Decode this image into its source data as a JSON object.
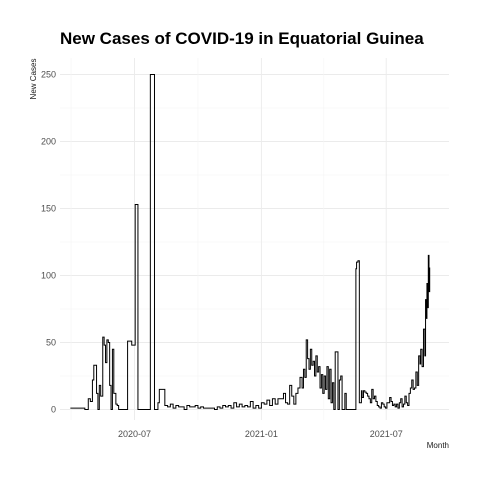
{
  "chart_data": {
    "type": "line",
    "title": "New Cases of COVID-19 in Equatorial Guinea",
    "xlabel": "Month",
    "ylabel": "New Cases",
    "x_ticks": [
      "2020-07",
      "2021-01",
      "2021-07"
    ],
    "y_ticks": [
      0,
      50,
      100,
      150,
      200,
      250
    ],
    "xlim": [
      "2020-03-15",
      "2021-09-30"
    ],
    "ylim": [
      0,
      258
    ],
    "grid": true,
    "line_color": "#000000",
    "series": [
      {
        "x": [
          "2020-03-30",
          "2020-04-10",
          "2020-04-20",
          "2020-04-25",
          "2020-04-28",
          "2020-05-01",
          "2020-05-03",
          "2020-05-05",
          "2020-05-07",
          "2020-05-09",
          "2020-05-11",
          "2020-05-13",
          "2020-05-16",
          "2020-05-18",
          "2020-05-20",
          "2020-05-22",
          "2020-05-24",
          "2020-05-26",
          "2020-05-28",
          "2020-05-30",
          "2020-06-01",
          "2020-06-04",
          "2020-06-06",
          "2020-06-08",
          "2020-06-12",
          "2020-06-16",
          "2020-06-20",
          "2020-06-21",
          "2020-06-26",
          "2020-06-27",
          "2020-07-01",
          "2020-07-02",
          "2020-07-05",
          "2020-07-06",
          "2020-07-10",
          "2020-07-11",
          "2020-07-23",
          "2020-07-24",
          "2020-07-29",
          "2020-07-30",
          "2020-08-03",
          "2020-08-04",
          "2020-08-06",
          "2020-08-10",
          "2020-08-14",
          "2020-08-18",
          "2020-08-22",
          "2020-08-26",
          "2020-08-30",
          "2020-09-03",
          "2020-09-07",
          "2020-09-11",
          "2020-09-15",
          "2020-09-19",
          "2020-09-23",
          "2020-09-27",
          "2020-10-01",
          "2020-10-05",
          "2020-10-09",
          "2020-10-13",
          "2020-10-17",
          "2020-10-21",
          "2020-10-25",
          "2020-10-29",
          "2020-11-02",
          "2020-11-06",
          "2020-11-10",
          "2020-11-14",
          "2020-11-18",
          "2020-11-22",
          "2020-11-26",
          "2020-11-30",
          "2020-12-04",
          "2020-12-08",
          "2020-12-12",
          "2020-12-16",
          "2020-12-20",
          "2020-12-24",
          "2020-12-28",
          "2021-01-01",
          "2021-01-05",
          "2021-01-09",
          "2021-01-13",
          "2021-01-17",
          "2021-01-21",
          "2021-01-25",
          "2021-01-29",
          "2021-02-02",
          "2021-02-05",
          "2021-02-08",
          "2021-02-11",
          "2021-02-14",
          "2021-02-17",
          "2021-02-20",
          "2021-02-23",
          "2021-02-26",
          "2021-03-01",
          "2021-03-03",
          "2021-03-05",
          "2021-03-07",
          "2021-03-09",
          "2021-03-11",
          "2021-03-13",
          "2021-03-15",
          "2021-03-17",
          "2021-03-19",
          "2021-03-21",
          "2021-03-23",
          "2021-03-25",
          "2021-03-27",
          "2021-03-29",
          "2021-03-31",
          "2021-04-02",
          "2021-04-04",
          "2021-04-06",
          "2021-04-08",
          "2021-04-10",
          "2021-04-12",
          "2021-04-14",
          "2021-04-16",
          "2021-04-18",
          "2021-04-20",
          "2021-04-22",
          "2021-04-24",
          "2021-04-26",
          "2021-04-28",
          "2021-04-30",
          "2021-05-02",
          "2021-05-04",
          "2021-05-06",
          "2021-05-08",
          "2021-05-10",
          "2021-05-14",
          "2021-05-18",
          "2021-05-19",
          "2021-05-21",
          "2021-05-23",
          "2021-05-26",
          "2021-05-27",
          "2021-05-29",
          "2021-05-31",
          "2021-06-02",
          "2021-06-04",
          "2021-06-06",
          "2021-06-08",
          "2021-06-10",
          "2021-06-12",
          "2021-06-14",
          "2021-06-16",
          "2021-06-18",
          "2021-06-20",
          "2021-06-22",
          "2021-06-24",
          "2021-06-26",
          "2021-06-28",
          "2021-06-30",
          "2021-07-02",
          "2021-07-04",
          "2021-07-06",
          "2021-07-08",
          "2021-07-10",
          "2021-07-12",
          "2021-07-14",
          "2021-07-16",
          "2021-07-18",
          "2021-07-20",
          "2021-07-22",
          "2021-07-24",
          "2021-07-26",
          "2021-07-28",
          "2021-07-30",
          "2021-08-01",
          "2021-08-03",
          "2021-08-05",
          "2021-08-07",
          "2021-08-09",
          "2021-08-11",
          "2021-08-13",
          "2021-08-15",
          "2021-08-17",
          "2021-08-19",
          "2021-08-20",
          "2021-08-22",
          "2021-08-24",
          "2021-08-26",
          "2021-08-27",
          "2021-08-28",
          "2021-08-29",
          "2021-08-30",
          "2021-08-31",
          "2021-09-01",
          "2021-09-02"
        ],
        "y": [
          1,
          1,
          0,
          8,
          6,
          22,
          33,
          33,
          12,
          0,
          18,
          10,
          54,
          48,
          35,
          52,
          50,
          18,
          0,
          45,
          12,
          4,
          3,
          0,
          0,
          0,
          0,
          51,
          51,
          48,
          48,
          153,
          153,
          0,
          0,
          0,
          0,
          250,
          250,
          0,
          0,
          5,
          15,
          15,
          3,
          2,
          4,
          1,
          3,
          2,
          2,
          0,
          3,
          2,
          2,
          3,
          1,
          2,
          1,
          1,
          1,
          1,
          0,
          2,
          1,
          3,
          2,
          3,
          1,
          5,
          2,
          4,
          2,
          3,
          2,
          6,
          1,
          3,
          1,
          5,
          4,
          7,
          3,
          8,
          4,
          8,
          8,
          12,
          5,
          4,
          18,
          10,
          4,
          12,
          16,
          24,
          16,
          30,
          24,
          52,
          38,
          30,
          45,
          33,
          36,
          25,
          40,
          28,
          32,
          16,
          26,
          12,
          25,
          15,
          32,
          8,
          30,
          5,
          20,
          0,
          43,
          43,
          0,
          22,
          25,
          0,
          0,
          12,
          0,
          0,
          0,
          0,
          0,
          105,
          110,
          111,
          5,
          14,
          9,
          14,
          13,
          12,
          10,
          8,
          5,
          15,
          8,
          10,
          6,
          3,
          2,
          1,
          5,
          4,
          2,
          1,
          5,
          5,
          9,
          6,
          3,
          4,
          2,
          4,
          1,
          5,
          8,
          2,
          4,
          10,
          5,
          3,
          12,
          16,
          22,
          15,
          16,
          28,
          18,
          40,
          34,
          45,
          32,
          60,
          40,
          82,
          68,
          94,
          76,
          115,
          88,
          106
        ]
      }
    ]
  }
}
